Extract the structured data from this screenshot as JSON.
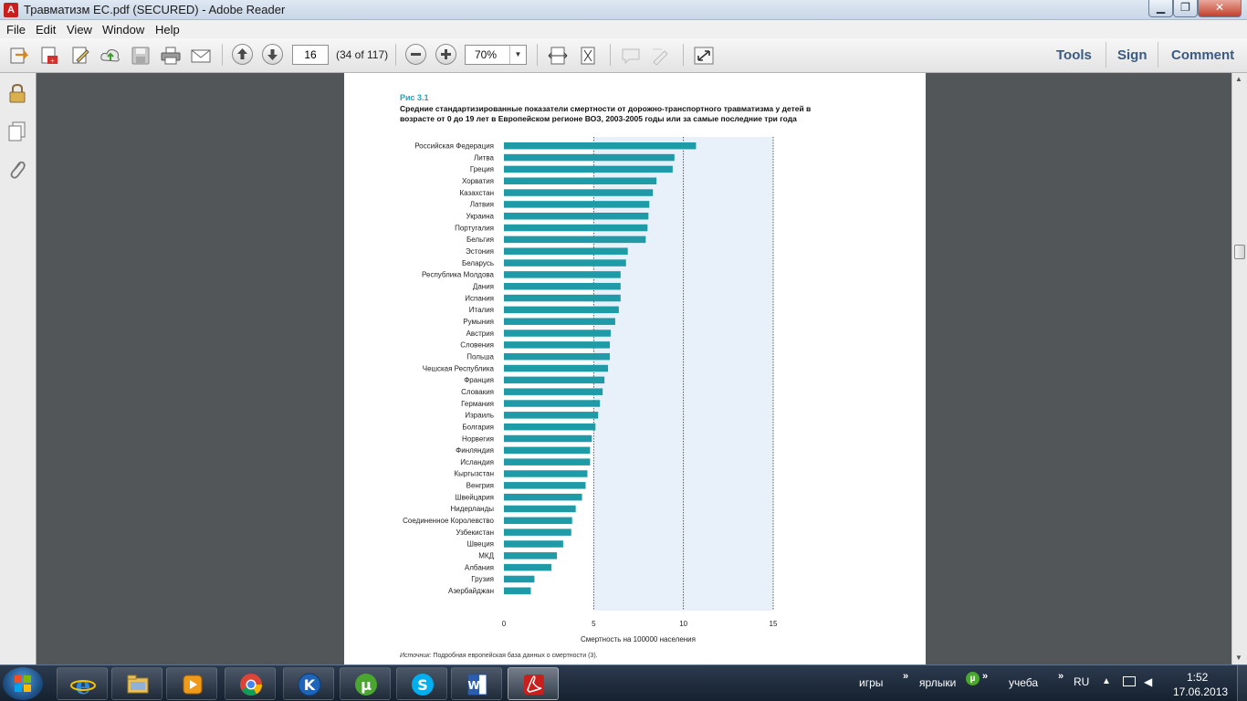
{
  "window": {
    "title": "Травматизм ЕС.pdf (SECURED) - Adobe Reader",
    "minimize": "▁",
    "maximize": "❐",
    "close": "✕"
  },
  "menu": [
    "File",
    "Edit",
    "View",
    "Window",
    "Help"
  ],
  "toolbar": {
    "page_value": "16",
    "page_count": "(34 of 117)",
    "zoom": "70%"
  },
  "right_panel_links": [
    "Tools",
    "Sign",
    "Comment"
  ],
  "document": {
    "fig_label": "Рис 3.1",
    "fig_title": "Средние стандартизированные показатели смертности от дорожно-транспортного травматизма у детей в возрасте от 0 до 19 лет в Европейском регионе ВОЗ, 2003-2005 годы или за самые последние три года",
    "source_label": "Источник:",
    "source_text": " Подробная европейская база данных о смертности (3)."
  },
  "chart_data": {
    "type": "bar",
    "orientation": "horizontal",
    "categories": [
      "Российская Федерация",
      "Литва",
      "Греция",
      "Хорватия",
      "Казахстан",
      "Латвия",
      "Украина",
      "Португалия",
      "Бельгия",
      "Эстония",
      "Беларусь",
      "Республика Молдова",
      "Дания",
      "Испания",
      "Италия",
      "Румыния",
      "Австрия",
      "Словения",
      "Польша",
      "Чешская Республика",
      "Франция",
      "Словакия",
      "Германия",
      "Израиль",
      "Болгария",
      "Норвегия",
      "Финляндия",
      "Исландия",
      "Кыргызстан",
      "Венгрия",
      "Швейцария",
      "Нидерланды",
      "Соединенное Королевство",
      "Узбекистан",
      "Швеция",
      "МКД",
      "Албания",
      "Грузия",
      "Азербайджан"
    ],
    "values": [
      10.7,
      9.5,
      9.4,
      8.5,
      8.3,
      8.1,
      8.05,
      8.0,
      7.9,
      6.9,
      6.8,
      6.5,
      6.5,
      6.5,
      6.4,
      6.2,
      5.95,
      5.9,
      5.9,
      5.8,
      5.6,
      5.5,
      5.35,
      5.25,
      5.1,
      4.9,
      4.8,
      4.8,
      4.65,
      4.55,
      4.35,
      4.0,
      3.8,
      3.75,
      3.3,
      2.95,
      2.65,
      1.7,
      1.5
    ],
    "xlim": [
      0,
      15
    ],
    "xticks": [
      "0",
      "5",
      "10",
      "15"
    ],
    "xlabel": "Смертность на 100000 населения",
    "ylabel": "",
    "title": "",
    "bar_color": "#1f9ba8",
    "grid": "dotted vertical lines at 5, 10, 15",
    "shaded_band": [
      5,
      15
    ]
  },
  "taskbar": {
    "tray_items": [
      "игры",
      "ярлыки",
      "учеба"
    ],
    "language": "RU",
    "time": "1:52",
    "date": "17.06.2013"
  }
}
